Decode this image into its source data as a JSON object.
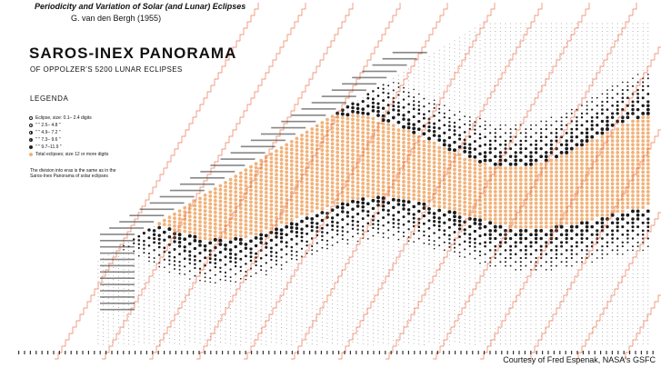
{
  "header": {
    "title": "Periodicity and Variation of Solar (and Lunar) Eclipses",
    "author": "G. van den Bergh (1955)"
  },
  "panorama": {
    "title": "SAROS-INEX PANORAMA",
    "subtitle": "OF OPPOLZER'S 5200 LUNAR ECLIPSES"
  },
  "legend": {
    "title": "LEGENDA",
    "rows": [
      {
        "symbol": "open",
        "label": "Eclipse, size: 0.1– 2.4 digits"
      },
      {
        "symbol": "quarter",
        "label": "\"      \"   2.5– 4.8   \""
      },
      {
        "symbol": "half",
        "label": "\"      \"   4.9– 7.2   \""
      },
      {
        "symbol": "three-quarter",
        "label": "\"      \"   7.3– 9.6   \""
      },
      {
        "symbol": "filled",
        "label": "\"      \"   9.7–11.9   \""
      },
      {
        "symbol": "total",
        "label": "Total eclipses; size 12 or more digits"
      }
    ],
    "note": "The division into eras is the same as in the Saros-Inex Panorama of solar eclipses"
  },
  "credit": "Courtesy of Fred Espenak, NASA's GSFC",
  "colors": {
    "total": "#f1b27a",
    "partial": "#1a1a1a",
    "staircase": "#e8643a",
    "dot": "#888888"
  }
}
